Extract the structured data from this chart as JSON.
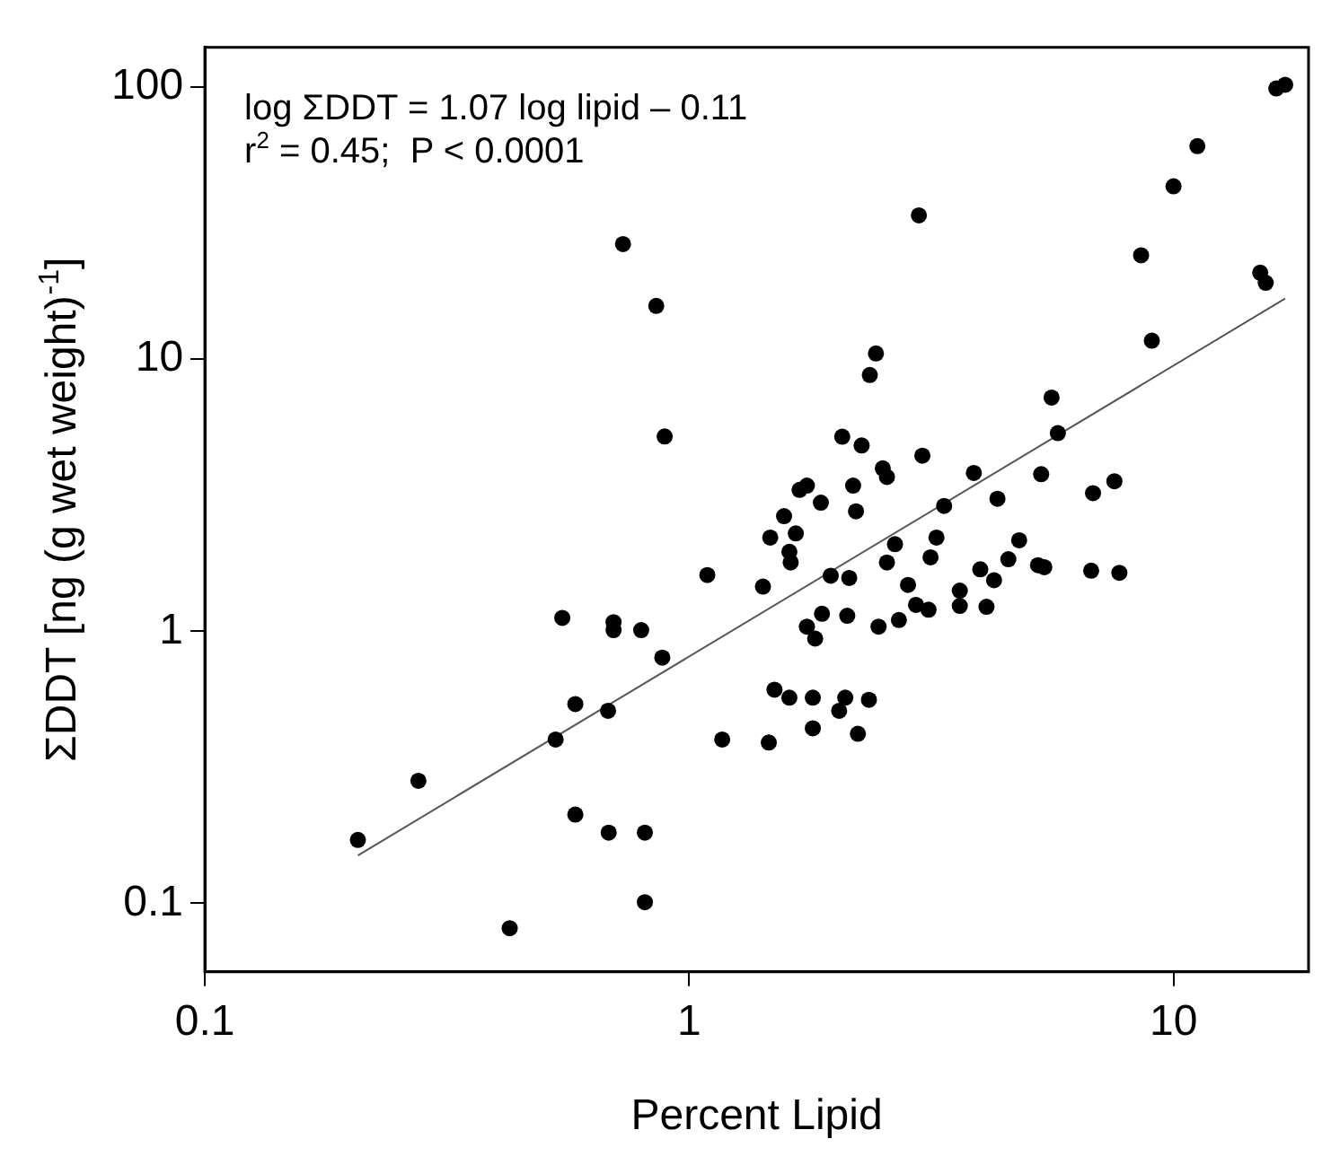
{
  "chart_data": {
    "type": "scatter",
    "xlabel": "Percent Lipid",
    "ylabel": "ΣDDT [ng (g wet weight)$^{-1}$]",
    "annotations": [
      "log ΣDDT = 1.07 log lipid – 0.11",
      "r$^{2}$ = 0.45;  P < 0.0001"
    ],
    "log": "xy",
    "xlim": [
      0.1,
      19
    ],
    "ylim": [
      0.056,
      140
    ],
    "xticks": [
      0.1,
      1,
      10
    ],
    "yticks": [
      0.1,
      1,
      10,
      100
    ],
    "grid": false,
    "legend": false,
    "marker": "circle",
    "series": [
      {
        "color": "#000000",
        "x": [
          0.73,
          0.855,
          0.89,
          16.3,
          17.0,
          11.2,
          10.0,
          2.98,
          8.57,
          15.1,
          15.5,
          9.02,
          2.43,
          2.36,
          5.6,
          5.77,
          2.07,
          2.27,
          3.03,
          2.51,
          2.56,
          3.87,
          5.33,
          7.55,
          6.82,
          1.75,
          1.69,
          2.18,
          1.87,
          4.33,
          3.36,
          1.09,
          0.547,
          0.698,
          0.698,
          0.796,
          0.88,
          0.582,
          0.68,
          0.53,
          1.17,
          0.276,
          0.582,
          0.682,
          0.81,
          0.207,
          0.81,
          0.426,
          1.57,
          2.21,
          1.47,
          1.66,
          1.61,
          1.62,
          1.42,
          1.96,
          2.14,
          2.66,
          2.56,
          3.24,
          3.15,
          2.83,
          4.8,
          4.56,
          3.99,
          4.26,
          5.25,
          5.41,
          6.76,
          7.73,
          3.62,
          1.88,
          2.12,
          1.75,
          1.82,
          2.46,
          2.71,
          2.94,
          3.12,
          3.62,
          4.11,
          1.5,
          1.61,
          1.8,
          2.1,
          2.35,
          2.04,
          1.8,
          2.23,
          1.46
        ],
        "values": [
          26.5,
          15.7,
          5.2,
          98.9,
          102,
          60.7,
          43.2,
          33.8,
          24.1,
          20.8,
          19.1,
          11.7,
          10.5,
          8.75,
          7.23,
          5.35,
          5.19,
          4.82,
          4.42,
          3.97,
          3.69,
          3.82,
          3.78,
          3.56,
          3.22,
          3.43,
          3.31,
          3.43,
          2.97,
          3.07,
          2.89,
          1.61,
          1.12,
          1.08,
          1.01,
          1.01,
          0.8,
          0.54,
          0.51,
          0.4,
          0.4,
          0.282,
          0.212,
          0.182,
          0.182,
          0.171,
          0.101,
          0.081,
          2.65,
          2.76,
          2.21,
          2.29,
          1.96,
          1.79,
          1.46,
          1.6,
          1.57,
          2.09,
          1.79,
          2.21,
          1.87,
          1.48,
          2.16,
          1.84,
          1.69,
          1.54,
          1.75,
          1.72,
          1.67,
          1.64,
          1.41,
          1.16,
          1.14,
          1.04,
          0.94,
          1.04,
          1.1,
          1.25,
          1.2,
          1.24,
          1.23,
          0.61,
          0.57,
          0.57,
          0.57,
          0.56,
          0.51,
          0.44,
          0.42,
          0.39
        ]
      },
      {
        "type": "line",
        "color": "#555555",
        "marker": "none",
        "line_style": "solid",
        "x": [
          0.207,
          17
        ],
        "values": [
          0.15,
          16.7
        ]
      }
    ]
  }
}
